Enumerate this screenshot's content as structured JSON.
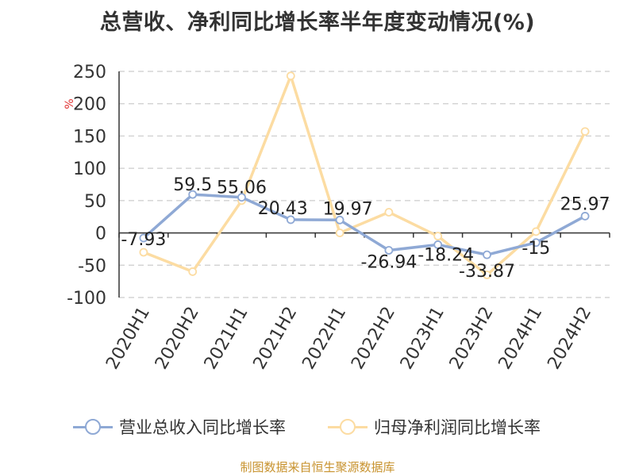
{
  "page": {
    "title": "总营收、净利同比增长率半年度变动情况(%)",
    "source": "制图数据来自恒生聚源数据库"
  },
  "colors": {
    "revenue": "#8fa9d5",
    "profit": "#fcdca2",
    "ylabel": "#e03030",
    "grid": "#cccccc",
    "axis": "#333333",
    "source": "#c8932f"
  },
  "chart_data": {
    "type": "line",
    "title": "总营收、净利同比增长率半年度变动情况(%)",
    "ylabel": "%",
    "xlabel": "",
    "ylim": [
      -100,
      250
    ],
    "yticks": [
      250,
      200,
      150,
      100,
      50,
      0,
      -50,
      -100
    ],
    "grid": true,
    "legend_position": "bottom",
    "categories": [
      "2020H1",
      "2020H2",
      "2021H1",
      "2021H2",
      "2022H1",
      "2022H2",
      "2023H1",
      "2023H2",
      "2024H1",
      "2024H2"
    ],
    "series": [
      {
        "name": "营业总收入同比增长率",
        "values": [
          -7.93,
          59.5,
          55.06,
          20.43,
          19.97,
          -26.94,
          -18.24,
          -33.87,
          -15,
          25.97
        ],
        "labels": [
          "-7.93",
          "59.5",
          "55.06",
          "20.43",
          "19.97",
          "-26.94",
          "-18.24",
          "-33.87",
          "-15",
          "25.97"
        ]
      },
      {
        "name": "归母净利润同比增长率",
        "values": [
          -30,
          -60,
          50,
          243,
          0,
          32,
          -5,
          -65,
          2,
          157
        ]
      }
    ]
  }
}
